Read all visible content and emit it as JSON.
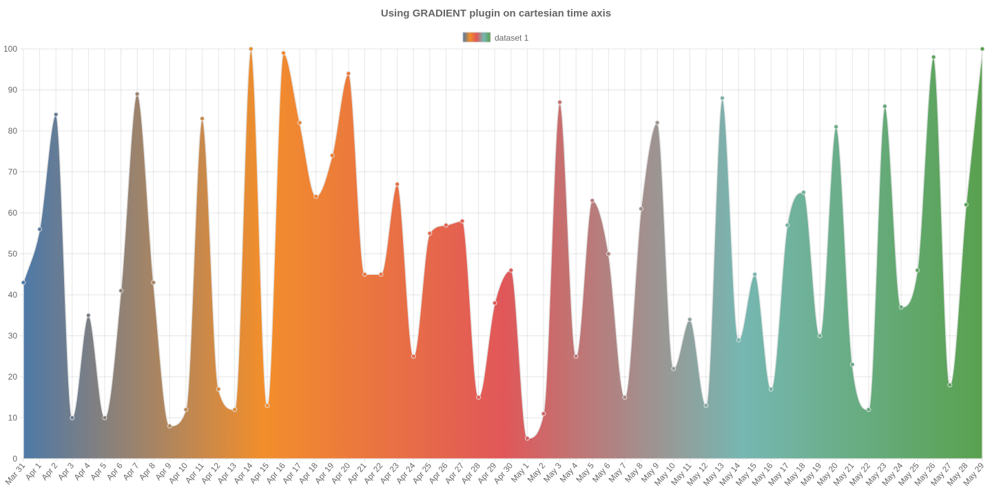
{
  "chart_data": {
    "type": "area",
    "title": "Using GRADIENT plugin on cartesian time axis",
    "legend": {
      "position": "top",
      "entries": [
        "dataset 1"
      ]
    },
    "grid": true,
    "ylim": [
      0,
      100
    ],
    "yticks": [
      "0",
      "10",
      "20",
      "30",
      "40",
      "50",
      "60",
      "70",
      "80",
      "90",
      "100"
    ],
    "categories": [
      "Mar 31",
      "Apr 1",
      "Apr 2",
      "Apr 3",
      "Apr 4",
      "Apr 5",
      "Apr 6",
      "Apr 7",
      "Apr 8",
      "Apr 9",
      "Apr 10",
      "Apr 11",
      "Apr 12",
      "Apr 13",
      "Apr 14",
      "Apr 15",
      "Apr 16",
      "Apr 17",
      "Apr 18",
      "Apr 19",
      "Apr 20",
      "Apr 21",
      "Apr 22",
      "Apr 23",
      "Apr 24",
      "Apr 25",
      "Apr 26",
      "Apr 27",
      "Apr 28",
      "Apr 29",
      "Apr 30",
      "May 1",
      "May 2",
      "May 3",
      "May 4",
      "May 5",
      "May 6",
      "May 7",
      "May 8",
      "May 9",
      "May 10",
      "May 11",
      "May 12",
      "May 13",
      "May 14",
      "May 15",
      "May 16",
      "May 17",
      "May 18",
      "May 19",
      "May 20",
      "May 21",
      "May 22",
      "May 23",
      "May 24",
      "May 25",
      "May 26",
      "May 27",
      "May 28",
      "May 29"
    ],
    "series": [
      {
        "name": "dataset 1",
        "values": [
          43,
          56,
          84,
          10,
          35,
          10,
          41,
          89,
          43,
          8,
          12,
          83,
          17,
          12,
          100,
          13,
          99,
          82,
          64,
          74,
          94,
          45,
          45,
          67,
          25,
          55,
          57,
          58,
          15,
          38,
          46,
          5,
          11,
          87,
          25,
          63,
          50,
          15,
          61,
          82,
          22,
          34,
          13,
          88,
          29,
          45,
          17,
          57,
          65,
          30,
          81,
          23,
          12,
          86,
          37,
          46,
          98,
          18,
          62,
          100
        ]
      }
    ],
    "gradient_colors": [
      "#4e79a7",
      "#f28e2b",
      "#e15759",
      "#76b7b2",
      "#59a14f"
    ]
  }
}
